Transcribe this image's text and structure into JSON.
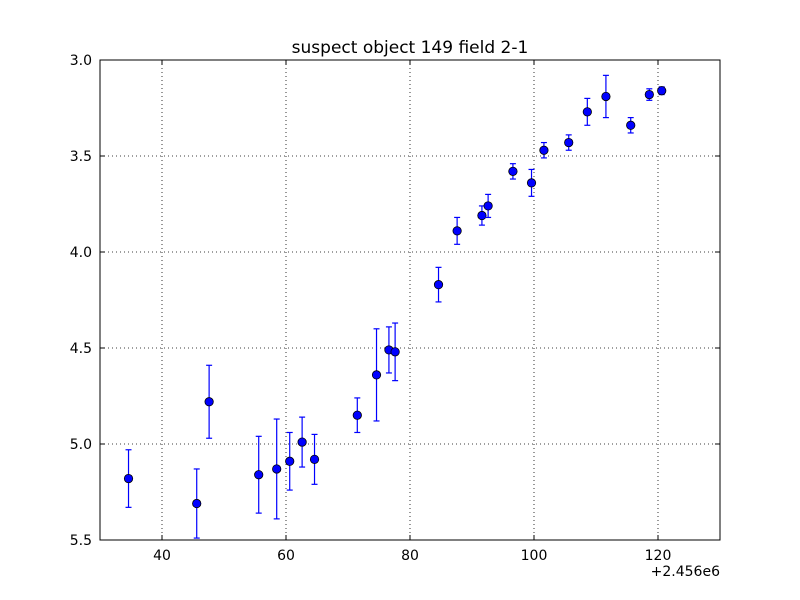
{
  "chart_data": {
    "type": "scatter",
    "title": "suspect object 149 field 2-1",
    "xlabel": "",
    "ylabel": "",
    "x_offset_label": "+2.456e6",
    "xlim": [
      2456030,
      2456130
    ],
    "ylim": [
      5.5,
      3.0
    ],
    "y_inverted": true,
    "grid": true,
    "x_ticks": [
      2456040,
      2456060,
      2456080,
      2456100,
      2456120
    ],
    "x_tick_labels": [
      "40",
      "60",
      "80",
      "100",
      "120"
    ],
    "y_ticks": [
      3.0,
      3.5,
      4.0,
      4.5,
      5.0,
      5.5
    ],
    "y_tick_labels": [
      "3.0",
      "3.5",
      "4.0",
      "4.5",
      "5.0",
      "5.5"
    ],
    "marker_color": "#0000ff",
    "series": [
      {
        "points": [
          {
            "x": 2456034.6,
            "y": 5.18,
            "err": 0.15
          },
          {
            "x": 2456045.6,
            "y": 5.31,
            "err": 0.18
          },
          {
            "x": 2456047.6,
            "y": 4.78,
            "err": 0.19
          },
          {
            "x": 2456055.6,
            "y": 5.16,
            "err": 0.2
          },
          {
            "x": 2456058.5,
            "y": 5.13,
            "err": 0.26
          },
          {
            "x": 2456060.6,
            "y": 5.09,
            "err": 0.15
          },
          {
            "x": 2456062.6,
            "y": 4.99,
            "err": 0.13
          },
          {
            "x": 2456064.6,
            "y": 5.08,
            "err": 0.13
          },
          {
            "x": 2456071.5,
            "y": 4.85,
            "err": 0.09
          },
          {
            "x": 2456074.6,
            "y": 4.64,
            "err": 0.24
          },
          {
            "x": 2456076.6,
            "y": 4.51,
            "err": 0.12
          },
          {
            "x": 2456077.6,
            "y": 4.52,
            "err": 0.15
          },
          {
            "x": 2456084.6,
            "y": 4.17,
            "err": 0.09
          },
          {
            "x": 2456087.6,
            "y": 3.89,
            "err": 0.07
          },
          {
            "x": 2456091.6,
            "y": 3.81,
            "err": 0.05
          },
          {
            "x": 2456092.6,
            "y": 3.76,
            "err": 0.06
          },
          {
            "x": 2456096.6,
            "y": 3.58,
            "err": 0.04
          },
          {
            "x": 2456099.6,
            "y": 3.64,
            "err": 0.07
          },
          {
            "x": 2456101.6,
            "y": 3.47,
            "err": 0.04
          },
          {
            "x": 2456105.6,
            "y": 3.43,
            "err": 0.04
          },
          {
            "x": 2456108.6,
            "y": 3.27,
            "err": 0.07
          },
          {
            "x": 2456111.6,
            "y": 3.19,
            "err": 0.11
          },
          {
            "x": 2456115.6,
            "y": 3.34,
            "err": 0.04
          },
          {
            "x": 2456118.6,
            "y": 3.18,
            "err": 0.03
          },
          {
            "x": 2456120.6,
            "y": 3.16,
            "err": 0.02
          }
        ]
      }
    ]
  }
}
